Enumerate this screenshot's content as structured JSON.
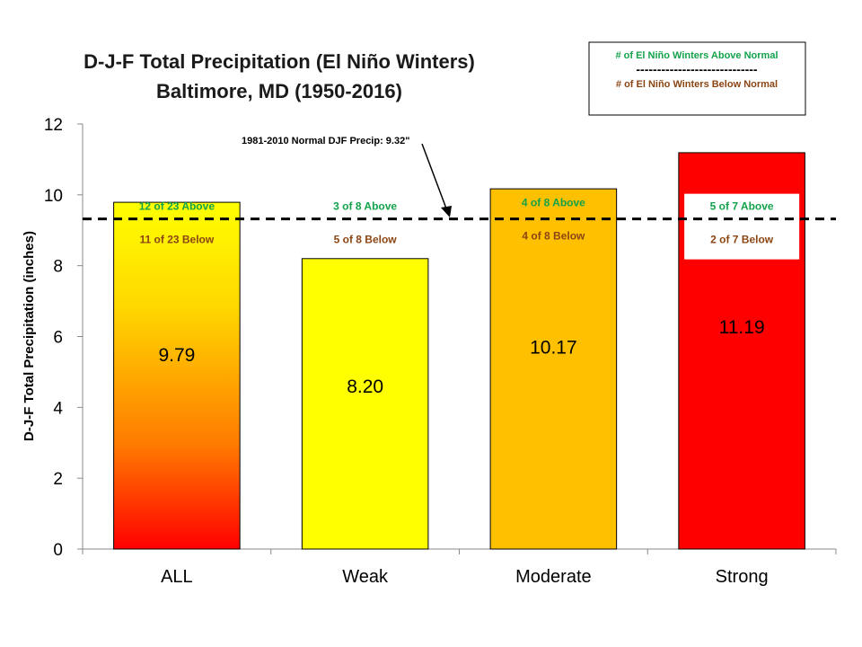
{
  "chart_data": {
    "type": "bar",
    "title": "D-J-F Total Precipitation (El Niño Winters)",
    "subtitle": "Baltimore, MD (1950-2016)",
    "xlabel": "",
    "ylabel": "D-J-F Total Precipitation (inches)",
    "categories": [
      "ALL",
      "Weak",
      "Moderate",
      "Strong"
    ],
    "values": [
      9.79,
      8.2,
      10.17,
      11.19
    ],
    "value_labels": [
      "9.79",
      "8.20",
      "10.17",
      "11.19"
    ],
    "ylim": [
      0,
      12
    ],
    "yticks": [
      0,
      2,
      4,
      6,
      8,
      10,
      12
    ],
    "grid": false,
    "bar_fills": [
      "gradient-yellow-red",
      "#ffff00",
      "#ffc000",
      "#ff0000"
    ],
    "above_counts": [
      "12 of 23 Above",
      "3 of 8 Above",
      "4 of 8 Above",
      "5 of 7 Above"
    ],
    "below_counts": [
      "11 of 23 Below",
      "5 of 8 Below",
      "4 of 8 Below",
      "2 of 7 Below"
    ],
    "normal_value": 9.32,
    "normal_label": "1981-2010  Normal DJF Precip: 9.32\"",
    "legend": {
      "placement": "top-right",
      "above_text": "# of El Niño Winters Above Normal",
      "divider": "-----------------------------",
      "below_text": "# of El Niño Winters Below Normal"
    },
    "colors": {
      "above_text": "#12a24a",
      "below_text": "#8b4513"
    }
  }
}
